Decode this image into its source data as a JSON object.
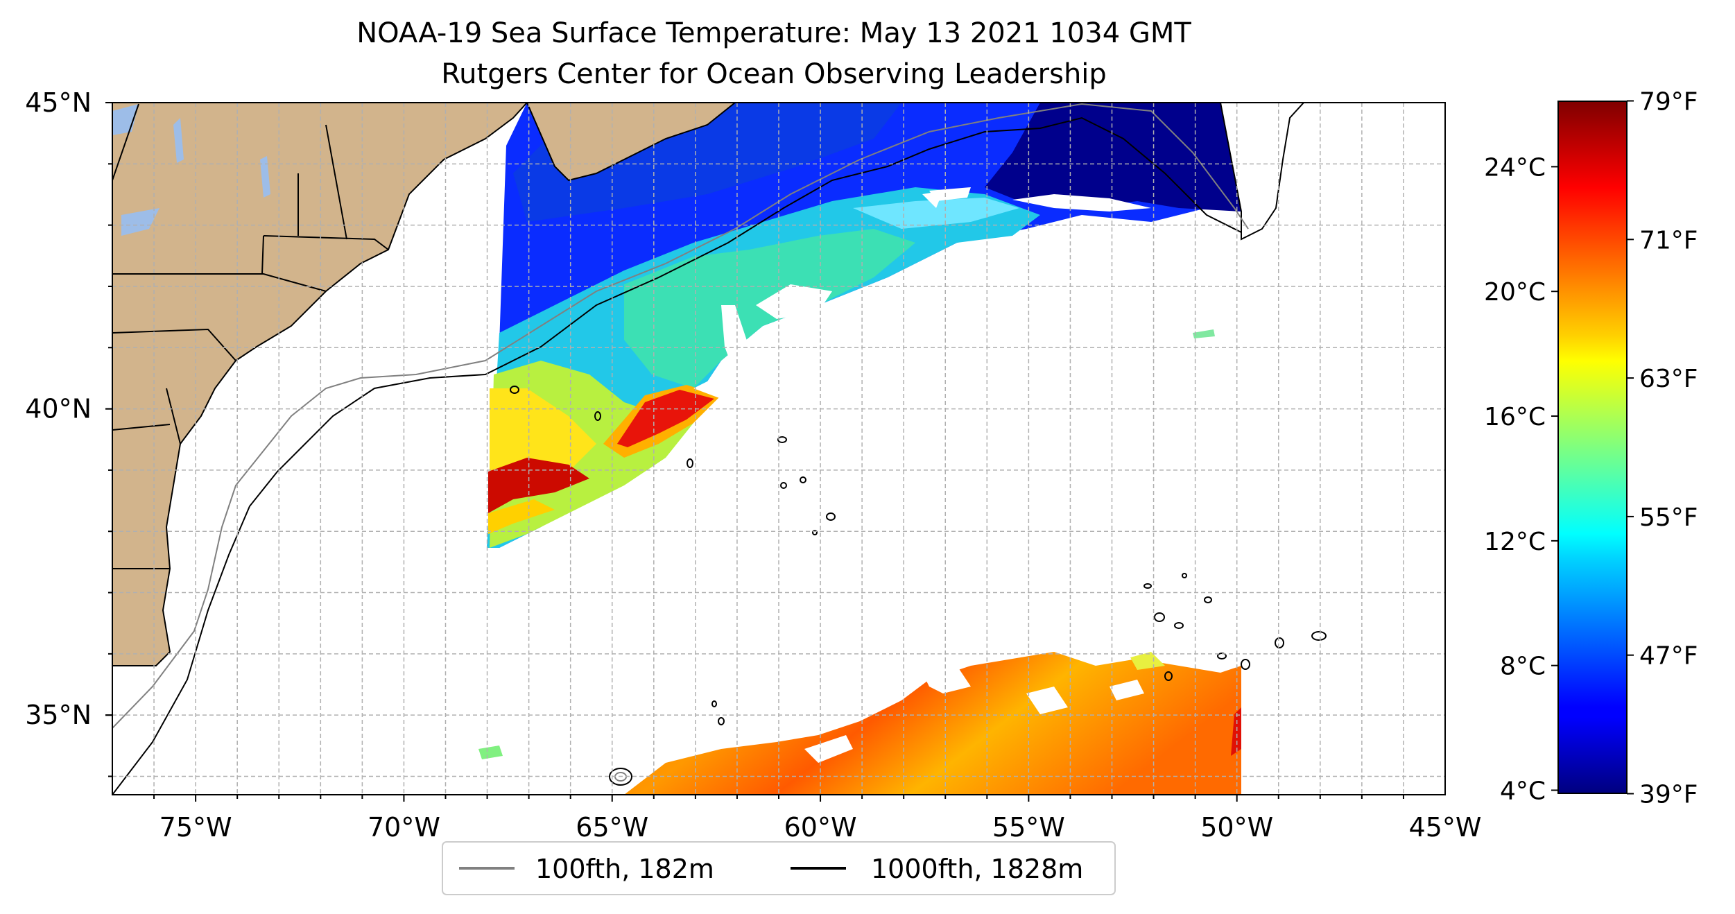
{
  "title": {
    "line1": "NOAA-19 Sea Surface Temperature: May 13 2021 1034 GMT",
    "line2": "Rutgers Center for Ocean Observing Leadership"
  },
  "map": {
    "lon_range": [
      -77,
      -45
    ],
    "lat_range": [
      33.7,
      45
    ],
    "x_ticks": [
      {
        "lon": -75,
        "label": "75°W"
      },
      {
        "lon": -70,
        "label": "70°W"
      },
      {
        "lon": -65,
        "label": "65°W"
      },
      {
        "lon": -60,
        "label": "60°W"
      },
      {
        "lon": -55,
        "label": "55°W"
      },
      {
        "lon": -50,
        "label": "50°W"
      },
      {
        "lon": -45,
        "label": "45°W"
      }
    ],
    "y_ticks": [
      {
        "lat": 45,
        "label": "45°N"
      },
      {
        "lat": 40,
        "label": "40°N"
      },
      {
        "lat": 35,
        "label": "35°N"
      }
    ],
    "minor_grid": true,
    "colors": {
      "land": "#d2b48c",
      "lakes": "#9dbde8",
      "grid": "#b0b0b0",
      "isobath_100fth": "#808080",
      "isobath_1000fth": "#000000"
    }
  },
  "legend": {
    "entries": [
      {
        "label": "100fth, 182m",
        "color": "#808080"
      },
      {
        "label": "1000fth, 1828m",
        "color": "#000000"
      }
    ]
  },
  "colorbar": {
    "colormap": "jet",
    "range_c": [
      3.9,
      26.1
    ],
    "celsius_ticks": [
      {
        "value": 4,
        "label": "4°C"
      },
      {
        "value": 8,
        "label": "8°C"
      },
      {
        "value": 12,
        "label": "12°C"
      },
      {
        "value": 16,
        "label": "16°C"
      },
      {
        "value": 20,
        "label": "20°C"
      },
      {
        "value": 24,
        "label": "24°C"
      }
    ],
    "fahrenheit_ticks": [
      {
        "value": 39,
        "label": "39°F"
      },
      {
        "value": 47,
        "label": "47°F"
      },
      {
        "value": 55,
        "label": "55°F"
      },
      {
        "value": 63,
        "label": "63°F"
      },
      {
        "value": 71,
        "label": "71°F"
      },
      {
        "value": 79,
        "label": "79°F"
      }
    ]
  }
}
